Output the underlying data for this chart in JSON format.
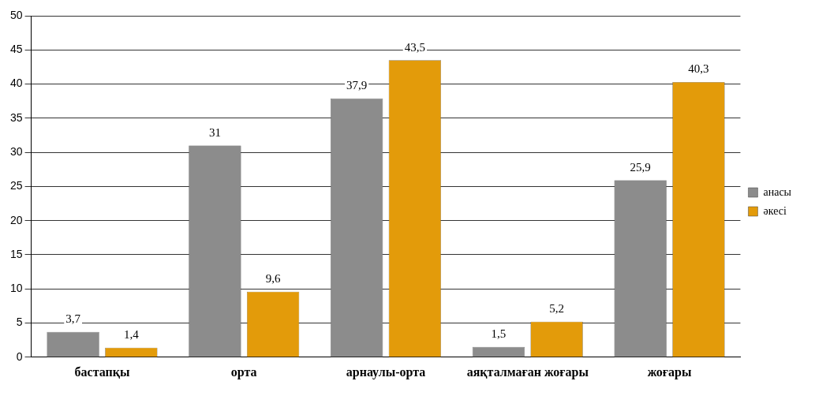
{
  "chart_data": {
    "type": "bar",
    "categories": [
      "бастапқы",
      "орта",
      "арнаулы-орта",
      "аяқталмаған жоғары",
      "жоғары"
    ],
    "series": [
      {
        "name": "анасы",
        "color": "#8c8c8c",
        "values": [
          3.7,
          31,
          37.9,
          1.5,
          25.9
        ],
        "value_labels": [
          "3,7",
          "31",
          "37,9",
          "1,5",
          "25,9"
        ]
      },
      {
        "name": "әкесі",
        "color": "#e39b0a",
        "values": [
          1.4,
          9.6,
          43.5,
          5.2,
          40.3
        ],
        "value_labels": [
          "1,4",
          "9,6",
          "43,5",
          "5,2",
          "40,3"
        ]
      }
    ],
    "ylim": [
      0,
      50
    ],
    "yticks": [
      0,
      5,
      10,
      15,
      20,
      25,
      30,
      35,
      40,
      45,
      50
    ],
    "grid": "y",
    "legend": "right"
  }
}
